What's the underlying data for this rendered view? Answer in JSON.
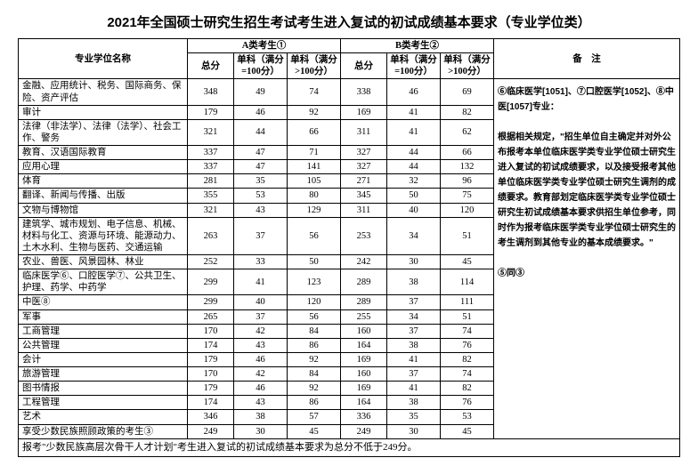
{
  "title": "2021年全国硕士研究生招生考试考生进入复试的初试成绩基本要求（专业学位类）",
  "header": {
    "name": "专业学位名称",
    "groupA": "A类考生①",
    "groupB": "B类考生②",
    "total": "总分",
    "single100": "单科（满分=100分）",
    "singleGt100": "单科（满分>100分）",
    "notes": "备　注"
  },
  "rows": [
    {
      "name": "金融、应用统计、税务、国际商务、保险、资产评估",
      "a": [
        348,
        49,
        74
      ],
      "b": [
        338,
        46,
        69
      ]
    },
    {
      "name": "审计",
      "a": [
        179,
        46,
        92
      ],
      "b": [
        169,
        41,
        82
      ]
    },
    {
      "name": "法律（非法学）、法律（法学）、社会工作、警务",
      "a": [
        321,
        44,
        66
      ],
      "b": [
        311,
        41,
        62
      ]
    },
    {
      "name": "教育、汉语国际教育",
      "a": [
        337,
        47,
        71
      ],
      "b": [
        327,
        44,
        66
      ]
    },
    {
      "name": "应用心理",
      "a": [
        337,
        47,
        141
      ],
      "b": [
        327,
        44,
        132
      ]
    },
    {
      "name": "体育",
      "a": [
        281,
        35,
        105
      ],
      "b": [
        271,
        32,
        96
      ]
    },
    {
      "name": "翻译、新闻与传播、出版",
      "a": [
        355,
        53,
        80
      ],
      "b": [
        345,
        50,
        75
      ]
    },
    {
      "name": "文物与博物馆",
      "a": [
        321,
        43,
        129
      ],
      "b": [
        311,
        40,
        120
      ]
    },
    {
      "name": "建筑学、城市规划、电子信息、机械、材料与化工、资源与环境、能源动力、土木水利、生物与医药、交通运输",
      "a": [
        263,
        37,
        56
      ],
      "b": [
        253,
        34,
        51
      ]
    },
    {
      "name": "农业、兽医、风景园林、林业",
      "a": [
        252,
        33,
        50
      ],
      "b": [
        242,
        30,
        45
      ]
    },
    {
      "name": "临床医学⑥、口腔医学⑦、公共卫生、护理、药学、中药学",
      "a": [
        299,
        41,
        123
      ],
      "b": [
        289,
        38,
        114
      ]
    },
    {
      "name": "中医⑧",
      "a": [
        299,
        40,
        120
      ],
      "b": [
        289,
        37,
        111
      ]
    },
    {
      "name": "军事",
      "a": [
        265,
        37,
        56
      ],
      "b": [
        255,
        34,
        51
      ]
    },
    {
      "name": "工商管理",
      "a": [
        170,
        42,
        84
      ],
      "b": [
        160,
        37,
        74
      ]
    },
    {
      "name": "公共管理",
      "a": [
        174,
        43,
        86
      ],
      "b": [
        164,
        38,
        76
      ]
    },
    {
      "name": "会计",
      "a": [
        179,
        46,
        92
      ],
      "b": [
        169,
        41,
        82
      ]
    },
    {
      "name": "旅游管理",
      "a": [
        170,
        42,
        84
      ],
      "b": [
        160,
        37,
        74
      ]
    },
    {
      "name": "图书情报",
      "a": [
        179,
        46,
        92
      ],
      "b": [
        169,
        41,
        82
      ]
    },
    {
      "name": "工程管理",
      "a": [
        174,
        43,
        86
      ],
      "b": [
        164,
        38,
        76
      ]
    },
    {
      "name": "艺术",
      "a": [
        346,
        38,
        57
      ],
      "b": [
        336,
        35,
        53
      ]
    },
    {
      "name": "享受少数民族照顾政策的考生③",
      "a": [
        249,
        30,
        45
      ],
      "b": [
        249,
        30,
        45
      ]
    }
  ],
  "notesText": "⑥临床医学[1051]、⑦口腔医学[1052]、⑧中医[1057]专业：\n\n根据相关规定，\"招生单位自主确定并对外公布报考本单位临床医学类专业学位硕士研究生进入复试的初试成绩要求，以及接受报考其他单位临床医学类专业学位硕士研究生调剂的成绩要求。教育部划定临床医学类专业学位硕士研究生初试成绩基本要求供招生单位参考，同时作为报考临床医学类专业学位硕士研究生的考生调剂到其他专业的基本成绩要求。\"\n\n⑤同③",
  "footnote": "报考\"少数民族高层次骨干人才计划\"考生进入复试的初试成绩基本要求为总分不低于249分。",
  "colWidths": {
    "name": 190,
    "score": 52,
    "notes": 120
  }
}
